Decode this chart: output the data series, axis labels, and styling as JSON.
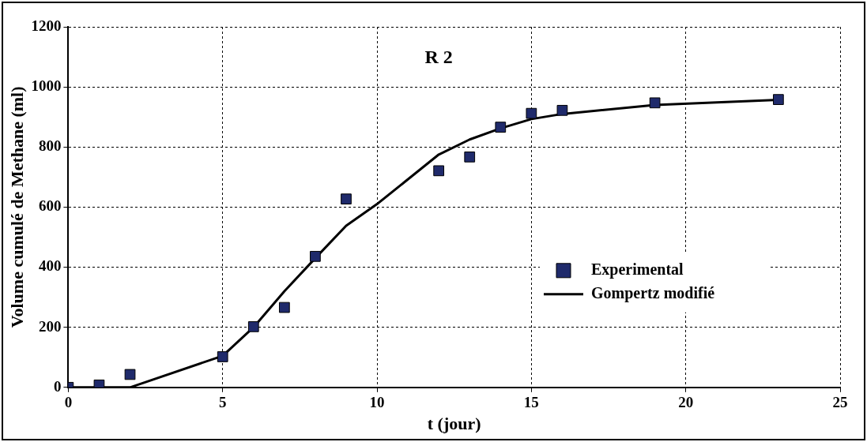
{
  "chart_data": {
    "type": "scatter",
    "title": "R 2",
    "xlabel": "t (jour)",
    "ylabel": "Volume cumulé de Methane (ml)",
    "xlim": [
      0,
      25
    ],
    "xticks": [
      0,
      5,
      10,
      15,
      20,
      25
    ],
    "ylim": [
      0,
      1200
    ],
    "yticks": [
      0,
      200,
      400,
      600,
      800,
      1000,
      1200
    ],
    "grid": true,
    "legend": "bottom right",
    "series": [
      {
        "name": "Experimental",
        "marker": "square",
        "color": "#1f2a6b",
        "x": [
          0,
          1,
          2,
          5,
          6,
          7,
          8,
          9,
          12,
          13,
          14,
          15,
          16,
          19,
          23
        ],
        "values": [
          0,
          8,
          43,
          102,
          202,
          266,
          436,
          627,
          721,
          767,
          866,
          912,
          922,
          947,
          958
        ]
      },
      {
        "name": "Gompertz modifié",
        "type": "line",
        "marker": "none",
        "line_style": "solid",
        "color": "#000000",
        "x": [
          0,
          2,
          5,
          6,
          7,
          8,
          9,
          10,
          12,
          13,
          14,
          15,
          16,
          19,
          23
        ],
        "values": [
          0,
          0,
          105,
          200,
          320,
          430,
          538,
          610,
          775,
          825,
          862,
          893,
          910,
          940,
          957
        ]
      }
    ]
  }
}
